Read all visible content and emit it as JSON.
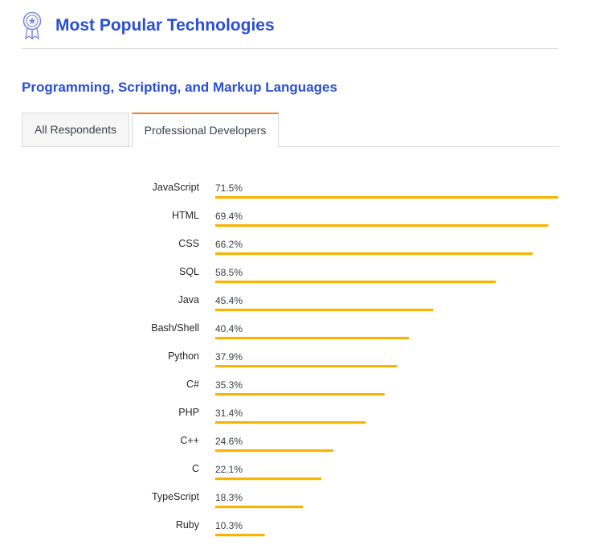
{
  "header": {
    "title": "Most Popular Technologies",
    "icon": "award-ribbon-icon",
    "accent_color": "#2a4fd6"
  },
  "section": {
    "title": "Programming, Scripting, and Markup Languages"
  },
  "tabs": [
    {
      "label": "All Respondents",
      "active": false
    },
    {
      "label": "Professional Developers",
      "active": true
    }
  ],
  "chart_data": {
    "type": "bar",
    "orientation": "horizontal",
    "categories": [
      "JavaScript",
      "HTML",
      "CSS",
      "SQL",
      "Java",
      "Bash/Shell",
      "Python",
      "C#",
      "PHP",
      "C++",
      "C",
      "TypeScript",
      "Ruby"
    ],
    "values": [
      71.5,
      69.4,
      66.2,
      58.5,
      45.4,
      40.4,
      37.9,
      35.3,
      31.4,
      24.6,
      22.1,
      18.3,
      10.3
    ],
    "value_labels": [
      "71.5%",
      "69.4%",
      "66.2%",
      "58.5%",
      "45.4%",
      "40.4%",
      "37.9%",
      "35.3%",
      "31.4%",
      "24.6%",
      "22.1%",
      "18.3%",
      "10.3%"
    ],
    "unit": "%",
    "bar_color": "#f7b500",
    "grid": false,
    "legend": "none"
  }
}
